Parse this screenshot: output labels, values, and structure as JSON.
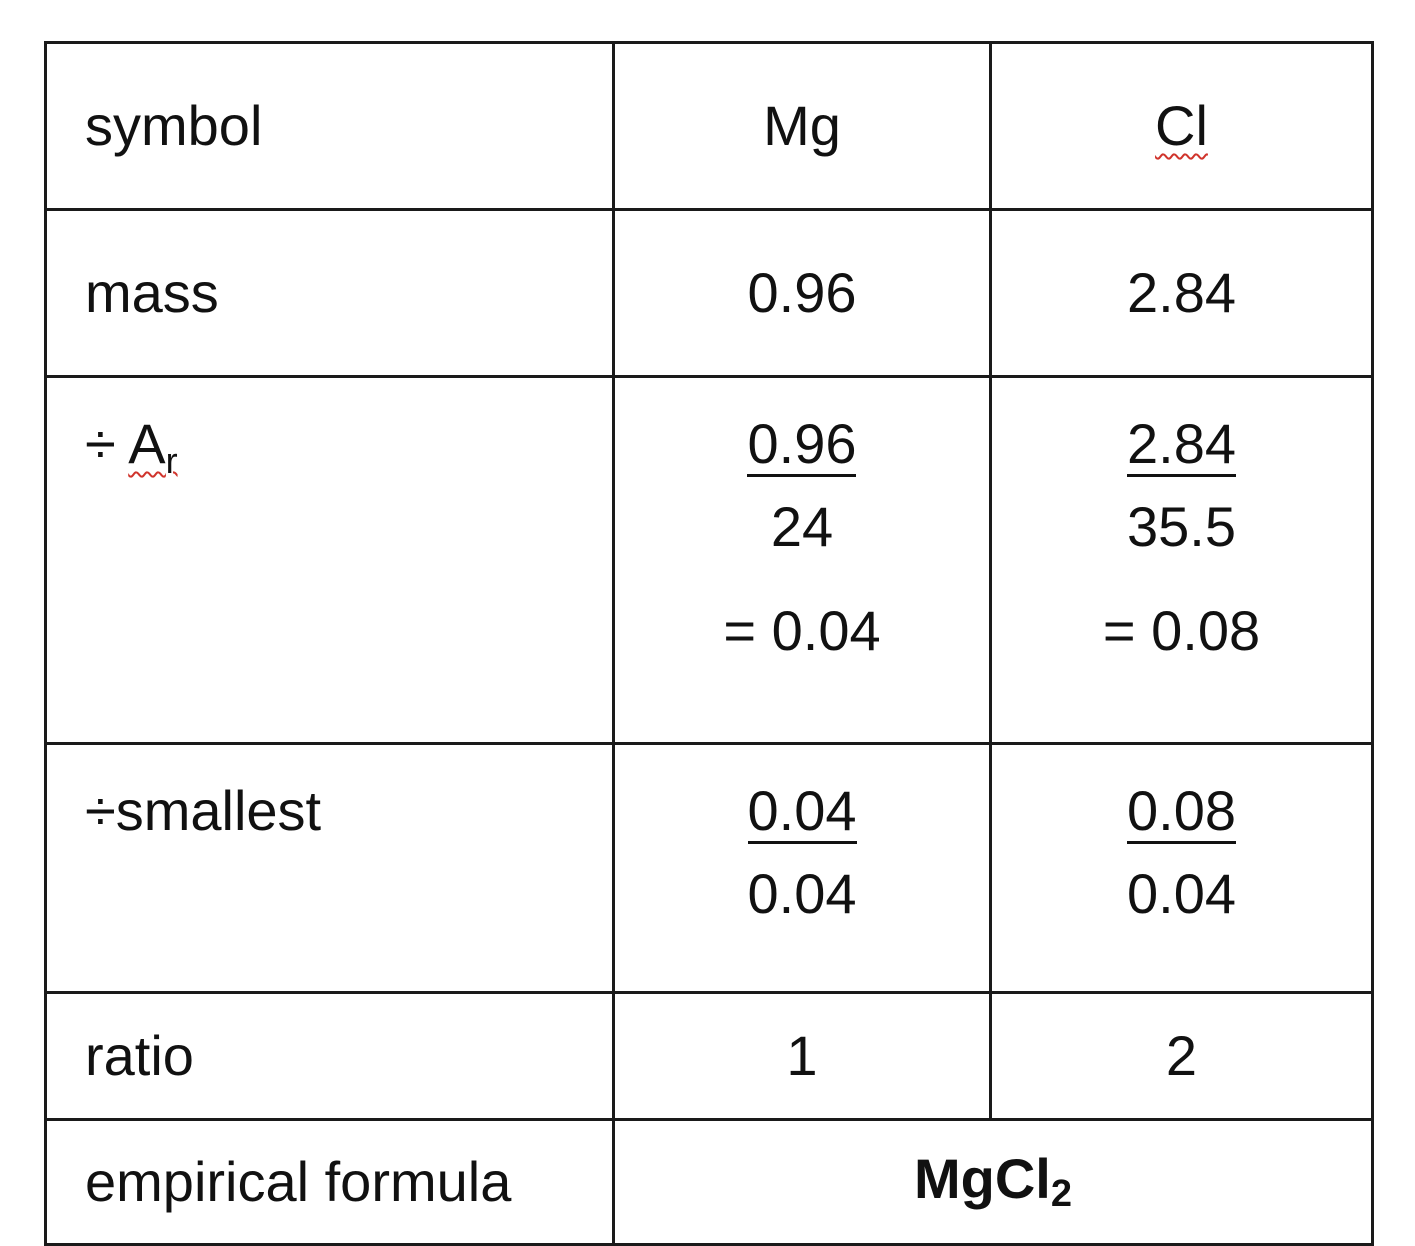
{
  "table": {
    "symbol_row": {
      "label": "symbol",
      "mg": "Mg",
      "cl": "Cl"
    },
    "mass_row": {
      "label": "mass",
      "mg": "0.96",
      "cl": "2.84"
    },
    "ar_row": {
      "label_prefix": "÷ ",
      "label_main": "A",
      "label_sub": "r",
      "mg": {
        "numerator": "0.96",
        "denominator": "24",
        "result": "= 0.04"
      },
      "cl": {
        "numerator": "2.84",
        "denominator": "35.5",
        "result": "= 0.08"
      }
    },
    "smallest_row": {
      "label": "÷smallest",
      "mg": {
        "numerator": "0.04",
        "denominator": "0.04"
      },
      "cl": {
        "numerator": "0.08",
        "denominator": "0.04"
      }
    },
    "ratio_row": {
      "label": "ratio",
      "mg": "1",
      "cl": "2"
    },
    "empirical_row": {
      "label": "empirical formula",
      "formula_main": "MgCl",
      "formula_sub": "2"
    }
  }
}
